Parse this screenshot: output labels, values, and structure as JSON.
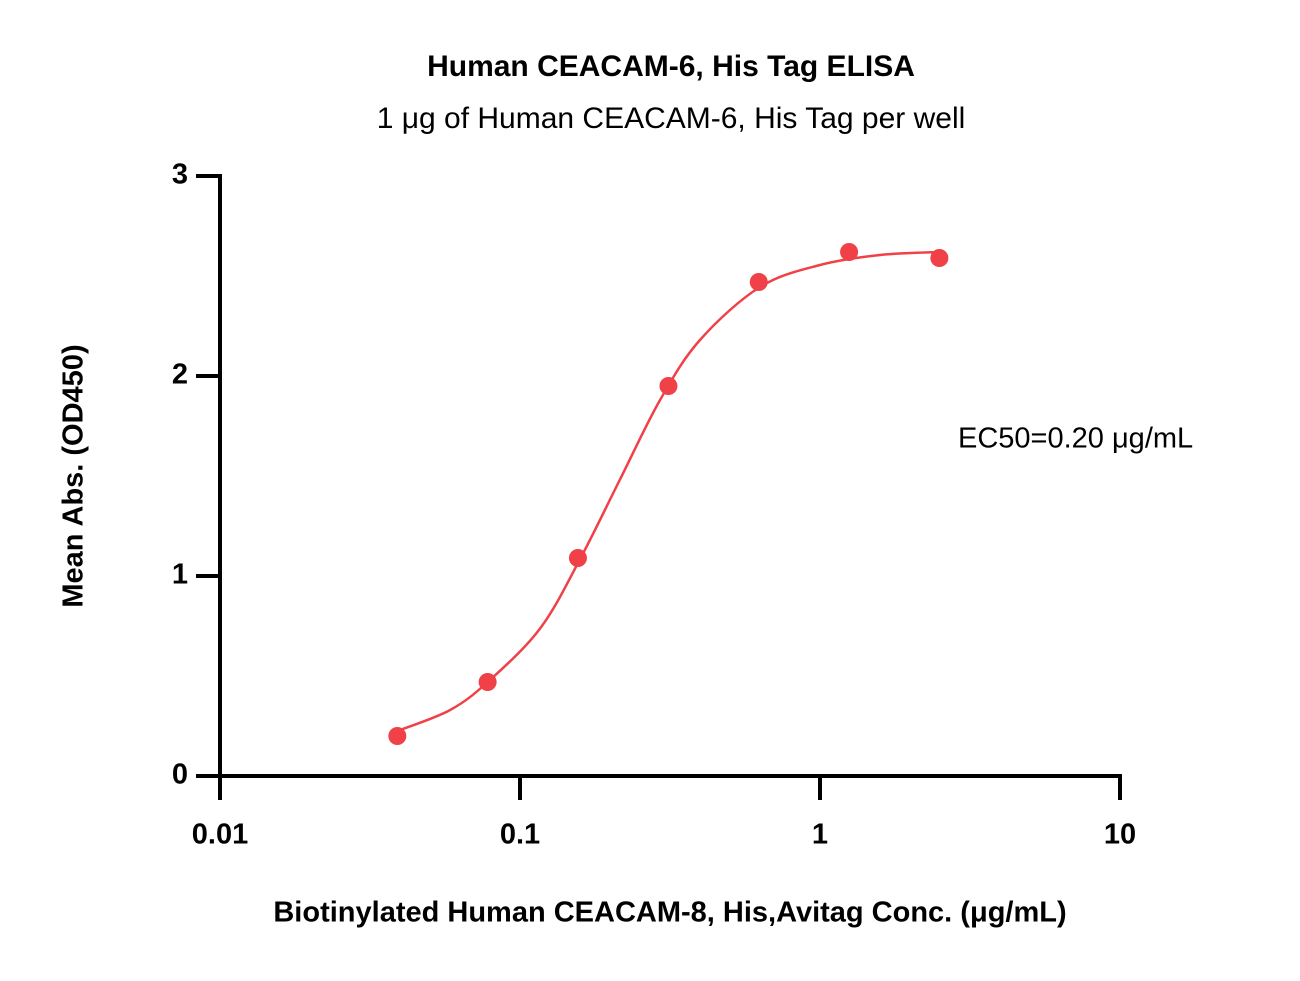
{
  "chart_data": {
    "type": "scatter",
    "title": "Human CEACAM-6, His Tag ELISA",
    "subtitle": "1 μg of Human CEACAM-6, His Tag per well",
    "x_label": "Biotinylated Human CEACAM-8, His,Avitag Conc. (μg/mL)",
    "y_label": "Mean Abs. (OD450)",
    "annotation": "EC50=0.20 μg/mL",
    "x_scale": "log",
    "xlim": [
      0.01,
      10
    ],
    "ylim": [
      0,
      3
    ],
    "xticks": [
      0.01,
      0.1,
      1,
      10
    ],
    "yticks": [
      0,
      1,
      2,
      3
    ],
    "series": [
      {
        "color": "#ef4147",
        "style": "markers",
        "x": [
          0.039,
          0.078,
          0.156,
          0.3125,
          0.625,
          1.25,
          2.5
        ],
        "values": [
          0.2,
          0.47,
          1.09,
          1.95,
          2.47,
          2.62,
          2.59
        ]
      },
      {
        "color": "#ef4147",
        "style": "line",
        "x": [
          0.039,
          0.0585,
          0.0794,
          0.117,
          0.158,
          0.215,
          0.293,
          0.398,
          0.631,
          1,
          1.585,
          2.512
        ],
        "values": [
          0.225,
          0.33,
          0.48,
          0.74,
          1.08,
          1.48,
          1.88,
          2.18,
          2.445,
          2.555,
          2.605,
          2.62
        ]
      }
    ]
  }
}
